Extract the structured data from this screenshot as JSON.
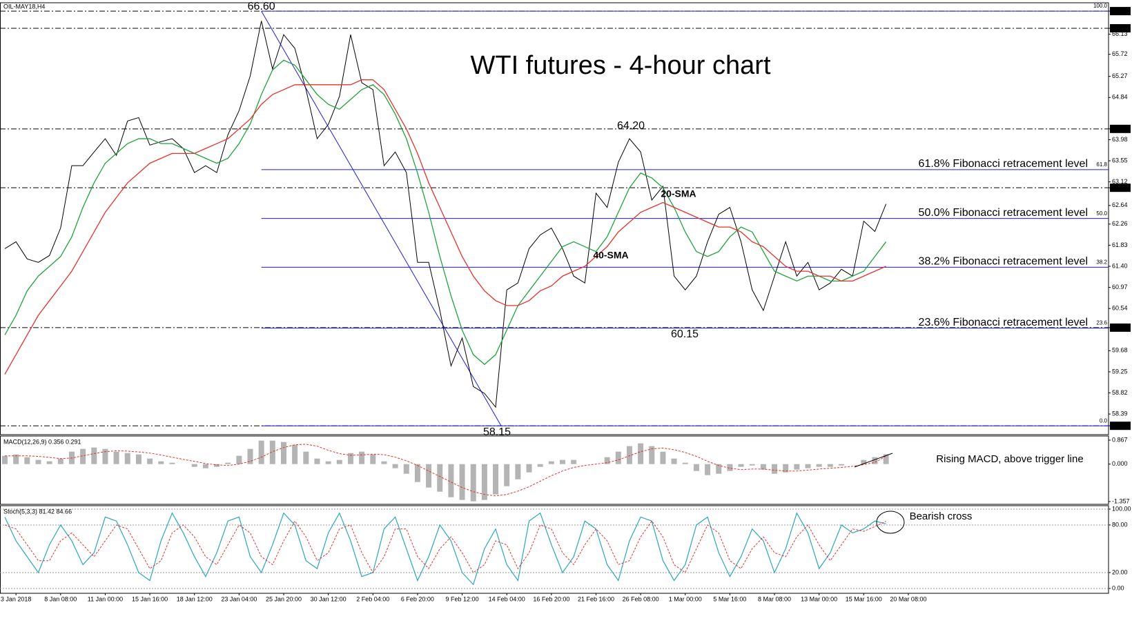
{
  "header": {
    "symbol": "OIL-MAY18,H4"
  },
  "chart_data": [
    {
      "type": "line",
      "title": "WTI futures - 4-hour chart",
      "ylim": [
        57.97,
        66.77
      ],
      "yticks": [
        {
          "value": 66.6,
          "label": "66.60"
        },
        66.25,
        66.13,
        65.72,
        65.27,
        64.84,
        {
          "value": 64.2,
          "label": "64.20"
        },
        63.98,
        63.55,
        63.12,
        {
          "value": 63,
          "label": "63.00"
        },
        62.64,
        62.26,
        61.83,
        {
          "value": 61.4,
          "label": "61.40"
        },
        60.97,
        60.54,
        60.15,
        59.68,
        59.25,
        58.82,
        58.39,
        58.15
      ],
      "levels": [
        66.6,
        66.25,
        64.2,
        63,
        60.15,
        58.15
      ],
      "fibonacci": [
        {
          "ratio_label": "100.0",
          "value": 66.6
        },
        {
          "ratio_label": "61.8",
          "label": "61.8% Fibonacci retracement level",
          "value": 63.37
        },
        {
          "ratio_label": "50.0",
          "label": "50.0% Fibonacci retracement level",
          "value": 62.375
        },
        {
          "ratio_label": "38.2",
          "label": "38.2% Fibonacci retracement level",
          "value": 61.38
        },
        {
          "ratio_label": "23.6",
          "label": "23.6% Fibonacci retracement level",
          "value": 60.14
        },
        {
          "ratio_label": "0.0",
          "value": 58.15
        }
      ],
      "fib_color": "#1a1ae6",
      "annotations": [
        "66.60",
        "64.20",
        "60.15",
        "58.15"
      ],
      "series": [
        {
          "color": "#000000",
          "values": [
            61.76,
            61.9,
            61.55,
            61.48,
            61.62,
            62.18,
            63.45,
            63.45,
            63.73,
            64.0,
            63.66,
            64.36,
            64.43,
            63.87,
            63.94,
            64.0,
            63.8,
            63.31,
            63.45,
            63.31,
            64.08,
            64.57,
            65.28,
            66.4,
            65.42,
            66.12,
            65.84,
            65.0,
            64.0,
            64.29,
            64.86,
            66.12,
            65.14,
            65.0,
            63.45,
            63.73,
            63.31,
            61.48,
            61.48,
            60.5,
            59.37,
            59.94,
            58.95,
            58.81,
            58.53,
            60.92,
            61.06,
            61.76,
            62.04,
            62.18,
            61.76,
            61.2,
            61.06,
            62.89,
            62.6,
            63.52,
            64.0,
            63.73,
            62.75,
            63.03,
            61.2,
            60.92,
            61.2,
            61.9,
            62.46,
            62.6,
            61.9,
            60.92,
            60.5,
            61.2,
            61.9,
            61.2,
            61.48,
            60.92,
            61.06,
            61.34,
            61.2,
            62.32,
            62.11,
            62.67,
            null,
            null
          ]
        },
        {
          "name": "20-SMA",
          "color": "#1fa33a",
          "values": [
            60.0,
            60.4,
            60.9,
            61.2,
            61.4,
            61.6,
            62.0,
            62.6,
            63.1,
            63.5,
            63.7,
            63.9,
            64.0,
            64.0,
            63.9,
            63.9,
            63.8,
            63.7,
            63.6,
            63.5,
            63.6,
            63.9,
            64.3,
            64.9,
            65.4,
            65.6,
            65.5,
            65.2,
            64.9,
            64.7,
            64.6,
            64.8,
            65.0,
            65.1,
            64.9,
            64.5,
            64.0,
            63.3,
            62.5,
            61.6,
            60.8,
            60.1,
            59.6,
            59.4,
            59.6,
            60.1,
            60.6,
            60.9,
            61.2,
            61.5,
            61.8,
            61.9,
            61.8,
            61.7,
            62.0,
            62.5,
            63.0,
            63.3,
            63.2,
            63.0,
            62.6,
            62.1,
            61.7,
            61.6,
            61.7,
            62.0,
            62.2,
            62.1,
            61.7,
            61.3,
            61.2,
            61.1,
            61.2,
            61.2,
            61.1,
            61.1,
            61.2,
            61.3,
            61.6,
            61.9,
            null,
            null
          ]
        },
        {
          "name": "40-SMA",
          "color": "#e8302a",
          "values": [
            59.2,
            59.6,
            60.0,
            60.4,
            60.7,
            61.0,
            61.3,
            61.7,
            62.1,
            62.5,
            62.8,
            63.1,
            63.3,
            63.5,
            63.6,
            63.7,
            63.7,
            63.7,
            63.8,
            63.9,
            64.0,
            64.2,
            64.4,
            64.7,
            64.9,
            65.0,
            65.1,
            65.1,
            65.1,
            65.1,
            65.1,
            65.1,
            65.2,
            65.2,
            65.0,
            64.6,
            64.2,
            63.7,
            63.1,
            62.6,
            62.1,
            61.6,
            61.2,
            60.9,
            60.7,
            60.6,
            60.6,
            60.7,
            60.9,
            61.0,
            61.2,
            61.3,
            61.4,
            61.6,
            61.8,
            62.1,
            62.3,
            62.5,
            62.6,
            62.7,
            62.6,
            62.5,
            62.4,
            62.3,
            62.2,
            62.2,
            62.1,
            61.9,
            61.8,
            61.6,
            61.4,
            61.3,
            61.3,
            61.2,
            61.2,
            61.1,
            61.1,
            61.2,
            61.3,
            61.4,
            null,
            null
          ]
        }
      ]
    },
    {
      "type": "macd",
      "title": "MACD(12,26,9) 0.356 0.291",
      "ylim": [
        -1.457,
        1.017
      ],
      "yticks": [
        0.867,
        {
          "value": 0,
          "label": "0.000"
        },
        -1.357
      ],
      "annotation": "Rising MACD, above trigger line",
      "series": [
        {
          "color": "#b4b4b4",
          "values": [
            0.3,
            0.35,
            0.25,
            0.15,
            0.1,
            0.2,
            0.45,
            0.55,
            0.6,
            0.55,
            0.45,
            0.4,
            0.35,
            0.2,
            0.1,
            0.05,
            0.0,
            -0.1,
            -0.15,
            -0.1,
            0.05,
            0.3,
            0.55,
            0.85,
            0.85,
            0.8,
            0.7,
            0.45,
            0.2,
            0.1,
            0.15,
            0.4,
            0.45,
            0.35,
            0.1,
            -0.15,
            -0.35,
            -0.65,
            -0.85,
            -1.0,
            -1.2,
            -1.3,
            -1.35,
            -1.3,
            -1.1,
            -0.8,
            -0.55,
            -0.3,
            -0.1,
            0.1,
            0.15,
            0.15,
            0.0,
            0.0,
            0.25,
            0.45,
            0.65,
            0.75,
            0.65,
            0.45,
            0.2,
            0.05,
            -0.25,
            -0.4,
            -0.35,
            -0.25,
            -0.1,
            -0.05,
            -0.2,
            -0.35,
            -0.3,
            -0.2,
            -0.15,
            -0.1,
            -0.1,
            -0.05,
            0.0,
            0.15,
            0.25,
            0.356,
            null,
            null
          ]
        },
        {
          "color": "#e8302a",
          "values": [
            0.3,
            0.3,
            0.3,
            0.28,
            0.24,
            0.2,
            0.22,
            0.3,
            0.38,
            0.45,
            0.48,
            0.47,
            0.44,
            0.4,
            0.33,
            0.25,
            0.17,
            0.1,
            0.02,
            -0.03,
            -0.05,
            0.0,
            0.1,
            0.25,
            0.45,
            0.6,
            0.7,
            0.72,
            0.65,
            0.5,
            0.38,
            0.32,
            0.33,
            0.36,
            0.34,
            0.25,
            0.12,
            -0.05,
            -0.25,
            -0.45,
            -0.65,
            -0.85,
            -1.0,
            -1.1,
            -1.15,
            -1.1,
            -0.98,
            -0.82,
            -0.62,
            -0.42,
            -0.25,
            -0.12,
            -0.05,
            0.0,
            0.05,
            0.15,
            0.3,
            0.45,
            0.55,
            0.58,
            0.52,
            0.42,
            0.28,
            0.1,
            -0.05,
            -0.15,
            -0.2,
            -0.18,
            -0.18,
            -0.22,
            -0.25,
            -0.25,
            -0.22,
            -0.18,
            -0.15,
            -0.12,
            -0.08,
            -0.02,
            0.06,
            0.291,
            null,
            null
          ]
        }
      ]
    },
    {
      "type": "stochastic",
      "title": "Stoch(5,3,3) 81.42 84.66",
      "ylim": [
        -6.1,
        104.3
      ],
      "yticks": [
        {
          "value": 100,
          "label": "100.00"
        },
        {
          "value": 80,
          "label": "80.00"
        },
        {
          "value": 20,
          "label": "20.00"
        },
        {
          "value": 0,
          "label": "0.00"
        }
      ],
      "grid": true,
      "annotation": "Bearish cross",
      "categories": [
        null,
        "3 Jan 2018",
        null,
        null,
        null,
        "8 Jan 08:00",
        null,
        null,
        null,
        "11 Jan 00:00",
        null,
        null,
        null,
        "15 Jan 16:00",
        null,
        null,
        null,
        "18 Jan 12:00",
        null,
        null,
        null,
        "23 Jan 04:00",
        null,
        null,
        null,
        "25 Jan 20:00",
        null,
        null,
        null,
        "30 Jan 12:00",
        null,
        null,
        null,
        "2 Feb 04:00",
        null,
        null,
        null,
        "6 Feb 20:00",
        null,
        null,
        null,
        "9 Feb 12:00",
        null,
        null,
        null,
        "14 Feb 04:00",
        null,
        null,
        null,
        "16 Feb 20:00",
        null,
        null,
        null,
        "21 Feb 16:00",
        null,
        null,
        null,
        "26 Feb 08:00",
        null,
        null,
        null,
        "1 Mar 00:00",
        null,
        null,
        null,
        "5 Mar 16:00",
        null,
        null,
        null,
        "8 Mar 08:00",
        null,
        null,
        null,
        "13 Mar 00:00",
        null,
        null,
        null,
        "15 Mar 16:00",
        null,
        null,
        null,
        "20 Mar 08:00"
      ],
      "series": [
        {
          "color": "#2aa6bd",
          "values": [
            90,
            60,
            40,
            20,
            55,
            80,
            60,
            30,
            45,
            90,
            85,
            55,
            20,
            10,
            60,
            95,
            70,
            40,
            15,
            45,
            85,
            90,
            40,
            20,
            55,
            95,
            80,
            35,
            25,
            70,
            95,
            60,
            15,
            20,
            75,
            90,
            50,
            10,
            40,
            80,
            60,
            20,
            5,
            50,
            75,
            30,
            10,
            85,
            95,
            55,
            20,
            40,
            85,
            75,
            30,
            10,
            60,
            90,
            85,
            35,
            10,
            30,
            80,
            90,
            45,
            15,
            40,
            75,
            60,
            20,
            50,
            95,
            70,
            25,
            45,
            80,
            70,
            75,
            85,
            81.42,
            null,
            null
          ]
        },
        {
          "color": "#e8302a",
          "values": [
            80,
            75,
            55,
            35,
            35,
            60,
            70,
            55,
            40,
            60,
            80,
            75,
            50,
            25,
            35,
            70,
            80,
            65,
            40,
            30,
            55,
            80,
            70,
            40,
            30,
            60,
            85,
            65,
            35,
            45,
            75,
            80,
            45,
            20,
            40,
            75,
            75,
            40,
            25,
            50,
            65,
            45,
            20,
            30,
            60,
            55,
            25,
            45,
            80,
            75,
            45,
            30,
            55,
            75,
            60,
            30,
            35,
            65,
            85,
            65,
            30,
            20,
            50,
            80,
            70,
            35,
            25,
            50,
            65,
            45,
            40,
            65,
            80,
            55,
            35,
            55,
            75,
            72,
            78,
            84.66,
            null,
            null
          ]
        }
      ]
    }
  ]
}
